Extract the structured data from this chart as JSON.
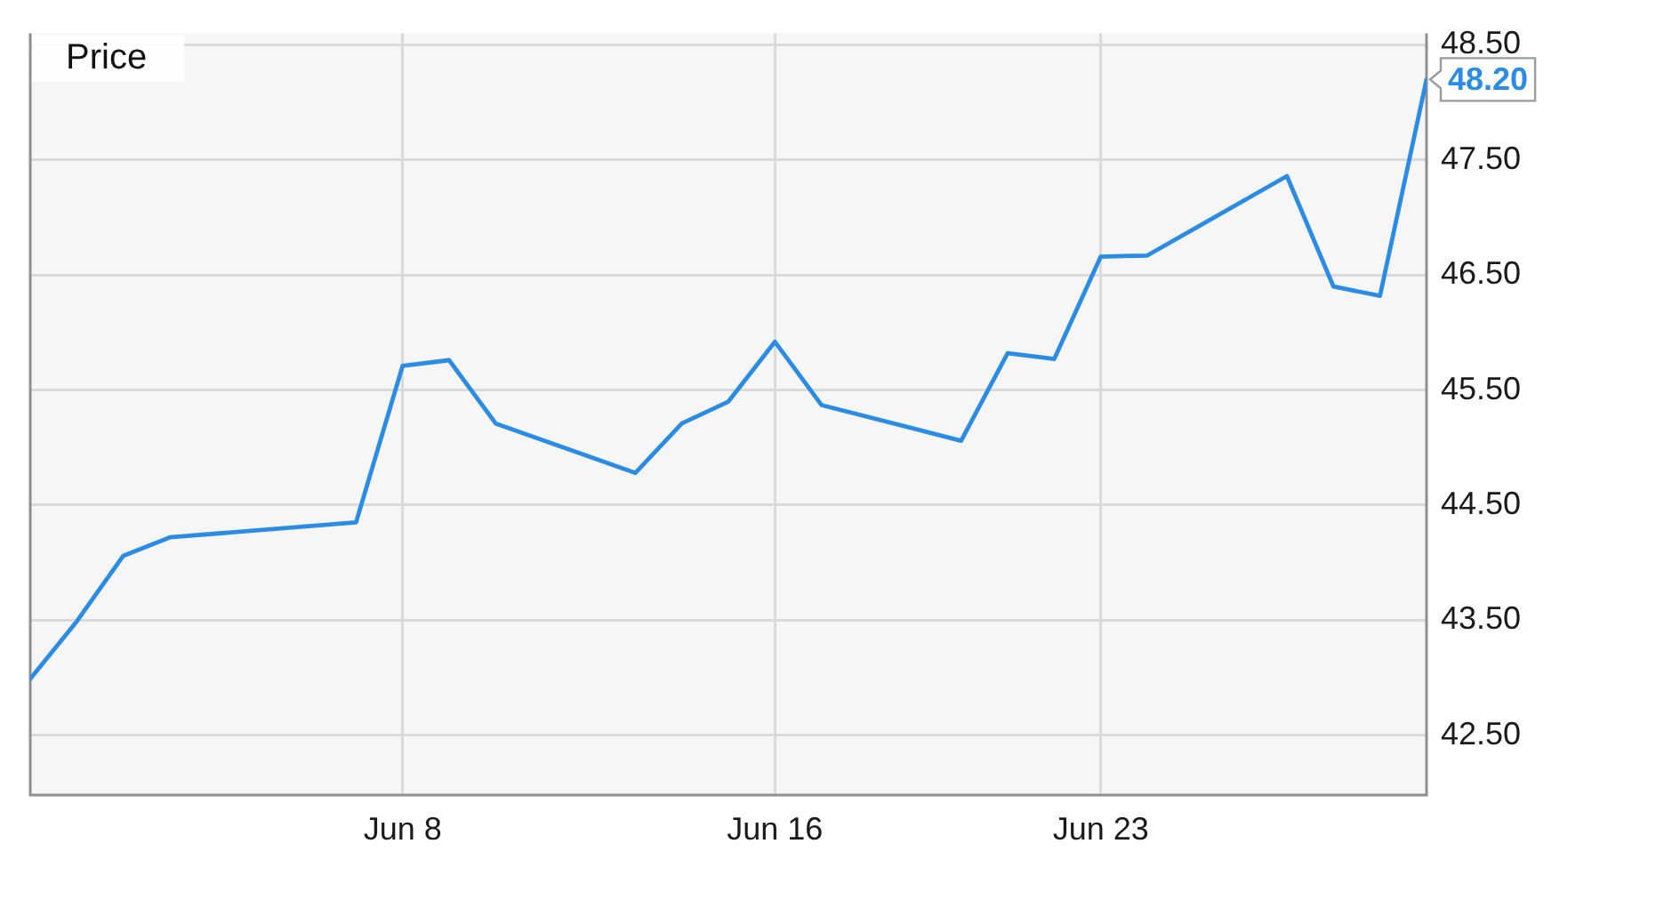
{
  "chart_data": {
    "type": "line",
    "title": "Price",
    "x": [
      "--05-31",
      "--06-01",
      "--06-02",
      "--06-03",
      "--06-07",
      "--06-08",
      "--06-09",
      "--06-10",
      "--06-13",
      "--06-14",
      "--06-15",
      "--06-16",
      "--06-17",
      "--06-20",
      "--06-21",
      "--06-22",
      "--06-23",
      "--06-24",
      "--06-27",
      "--06-28",
      "--06-29",
      "--06-30"
    ],
    "series": [
      {
        "color": "#2b8ce6",
        "values": [
          42.99,
          43.49,
          44.06,
          44.22,
          44.35,
          45.71,
          45.76,
          45.21,
          44.78,
          45.21,
          45.4,
          45.92,
          45.37,
          45.06,
          45.82,
          45.77,
          46.66,
          46.67,
          47.36,
          46.4,
          46.32,
          48.2
        ],
        "value_labels": [
          null,
          null,
          null,
          null,
          null,
          null,
          null,
          null,
          null,
          null,
          null,
          null,
          null,
          null,
          null,
          null,
          null,
          null,
          null,
          null,
          null,
          "48.20"
        ]
      }
    ],
    "xlim": [
      "--05-31",
      "--06-30"
    ],
    "xticks": [
      {
        "value": "--06-08",
        "label": "Jun 8"
      },
      {
        "value": "--06-16",
        "label": "Jun 16"
      },
      {
        "value": "--06-23",
        "label": "Jun 23"
      }
    ],
    "ylim": [
      41.98,
      48.6
    ],
    "yticks": [
      {
        "value": 42.5,
        "label": "42.50"
      },
      {
        "value": 43.5,
        "label": "43.50"
      },
      {
        "value": 44.5,
        "label": "44.50"
      },
      {
        "value": 45.5,
        "label": "45.50"
      },
      {
        "value": 46.5,
        "label": "46.50"
      },
      {
        "value": 47.5,
        "label": "47.50"
      },
      {
        "value": 48.5,
        "label": "48.50"
      }
    ],
    "grid": true,
    "marker": "none"
  }
}
